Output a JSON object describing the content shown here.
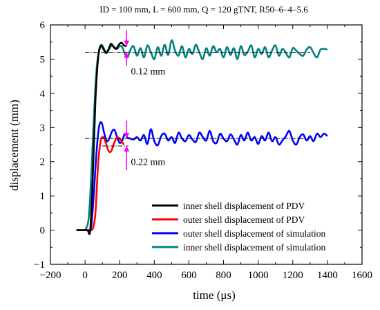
{
  "chart_data": {
    "type": "line",
    "title": "ID = 100 mm, L = 600 mm, Q = 120 gTNT, R50–6–4–5.6",
    "xlabel": "time (μs)",
    "ylabel": "displacement (mm)",
    "xlim": [
      -200,
      1600
    ],
    "ylim": [
      -1,
      6
    ],
    "x_ticks": [
      "−200",
      "0",
      "200",
      "400",
      "600",
      "800",
      "1000",
      "1200",
      "1400",
      "1600"
    ],
    "y_ticks": [
      "−1",
      "0",
      "1",
      "2",
      "3",
      "4",
      "5",
      "6"
    ],
    "grid": false,
    "legend_position": "bottom-right",
    "series": [
      {
        "name": "inner shell displacement of PDV",
        "color": "#000000",
        "x": [
          -50,
          0,
          15,
          30,
          45,
          60,
          75,
          90,
          105,
          120,
          135,
          150,
          165,
          180,
          195,
          210,
          225,
          240
        ],
        "y": [
          0,
          0,
          0,
          0,
          1.6,
          3.8,
          5.0,
          5.38,
          5.3,
          5.18,
          5.28,
          5.45,
          5.35,
          5.3,
          5.42,
          5.48,
          5.4,
          5.38
        ]
      },
      {
        "name": "outer shell displacement of PDV",
        "color": "#ff0000",
        "x": [
          -50,
          0,
          30,
          45,
          60,
          75,
          90,
          105,
          120,
          135,
          150,
          165,
          180,
          195,
          210,
          225
        ],
        "y": [
          0,
          0,
          0,
          0.05,
          0.5,
          1.9,
          2.6,
          2.72,
          2.55,
          2.32,
          2.3,
          2.5,
          2.68,
          2.7,
          2.6,
          2.5
        ]
      },
      {
        "name": "outer shell displacement of simulation",
        "color": "#0000ff",
        "x": [
          0,
          20,
          35,
          50,
          65,
          80,
          95,
          110,
          125,
          140,
          155,
          170,
          185,
          200,
          215,
          230,
          245,
          260,
          280,
          300,
          320,
          340,
          360,
          380,
          400,
          420,
          440,
          460,
          480,
          500,
          520,
          540,
          560,
          580,
          600,
          620,
          640,
          660,
          680,
          700,
          720,
          740,
          760,
          780,
          800,
          820,
          840,
          860,
          880,
          900,
          920,
          940,
          960,
          980,
          1000,
          1020,
          1040,
          1060,
          1080,
          1100,
          1120,
          1140,
          1160,
          1180,
          1200,
          1220,
          1240,
          1260,
          1280,
          1300,
          1320,
          1340,
          1360,
          1380,
          1400
        ],
        "y": [
          0,
          0,
          0.1,
          1.0,
          2.2,
          3.0,
          3.15,
          2.85,
          2.6,
          2.68,
          2.88,
          2.93,
          2.72,
          2.55,
          2.62,
          2.82,
          2.7,
          2.68,
          2.65,
          2.72,
          2.62,
          2.78,
          2.52,
          2.95,
          2.6,
          2.48,
          2.75,
          2.82,
          2.62,
          2.72,
          2.55,
          2.85,
          2.68,
          2.6,
          2.78,
          2.65,
          2.58,
          2.85,
          2.72,
          2.62,
          2.9,
          2.6,
          2.55,
          2.82,
          2.68,
          2.6,
          2.8,
          2.65,
          2.5,
          2.78,
          2.62,
          2.85,
          2.62,
          2.72,
          2.52,
          2.75,
          2.62,
          2.85,
          2.6,
          2.72,
          2.5,
          2.62,
          2.75,
          2.9,
          2.62,
          2.5,
          2.72,
          2.8,
          2.62,
          2.75,
          2.6,
          2.82,
          2.72,
          2.82,
          2.75
        ]
      },
      {
        "name": "inner shell displacement of simulation",
        "color": "#008080",
        "x": [
          0,
          20,
          35,
          50,
          65,
          80,
          95,
          110,
          125,
          140,
          155,
          170,
          185,
          200,
          215,
          230,
          245,
          260,
          280,
          300,
          320,
          340,
          360,
          380,
          400,
          420,
          440,
          460,
          480,
          500,
          520,
          540,
          560,
          580,
          600,
          620,
          640,
          660,
          680,
          700,
          720,
          740,
          760,
          780,
          800,
          820,
          840,
          860,
          880,
          900,
          920,
          940,
          960,
          980,
          1000,
          1020,
          1040,
          1060,
          1080,
          1100,
          1120,
          1140,
          1160,
          1180,
          1200,
          1220,
          1240,
          1260,
          1280,
          1300,
          1320,
          1340,
          1360,
          1380,
          1400
        ],
        "y": [
          0,
          0.3,
          1.5,
          3.2,
          4.6,
          5.25,
          5.42,
          5.3,
          5.18,
          5.3,
          5.4,
          5.35,
          5.3,
          5.38,
          5.35,
          5.15,
          5.05,
          5.25,
          5.38,
          5.1,
          5.32,
          5.05,
          5.4,
          5.2,
          5.0,
          5.35,
          5.1,
          5.42,
          5.12,
          5.55,
          5.25,
          5.1,
          5.38,
          5.05,
          5.3,
          5.15,
          5.42,
          5.2,
          5.0,
          5.32,
          5.1,
          5.38,
          5.2,
          5.3,
          5.05,
          5.35,
          5.12,
          5.32,
          5.0,
          5.38,
          5.12,
          5.22,
          5.4,
          5.05,
          5.3,
          5.15,
          5.35,
          5.05,
          5.25,
          5.4,
          5.1,
          5.3,
          5.18,
          5.05,
          5.32,
          5.25,
          5.15,
          5.1,
          5.28,
          5.35,
          5.18,
          5.05,
          5.28,
          5.3,
          5.28
        ]
      }
    ],
    "reference_lines": [
      {
        "color": "#000000",
        "dash": "dash-dot",
        "x": [
          0,
          1300
        ],
        "y": [
          5.2,
          5.2
        ]
      },
      {
        "color": "#000000",
        "dash": "dash-dot",
        "x": [
          0,
          1300
        ],
        "y": [
          2.68,
          2.68
        ]
      },
      {
        "color": "#000000",
        "dash": "dash-dot",
        "x": [
          100,
          250
        ],
        "y": [
          2.46,
          2.46
        ]
      }
    ],
    "annotations": [
      {
        "text": "0.12 mm",
        "x": 265,
        "y": 4.65,
        "arrow_x": 240,
        "arrow_from": [
          5.85,
          4.8
        ],
        "arrow_to": [
          5.38,
          5.2
        ],
        "color": "#ff00ff"
      },
      {
        "text": "0.22 mm",
        "x": 265,
        "y": 2.0,
        "arrow_x": 240,
        "arrow_from": [
          3.2,
          1.75
        ],
        "arrow_to": [
          2.68,
          2.46
        ],
        "color": "#ff00ff"
      }
    ]
  }
}
